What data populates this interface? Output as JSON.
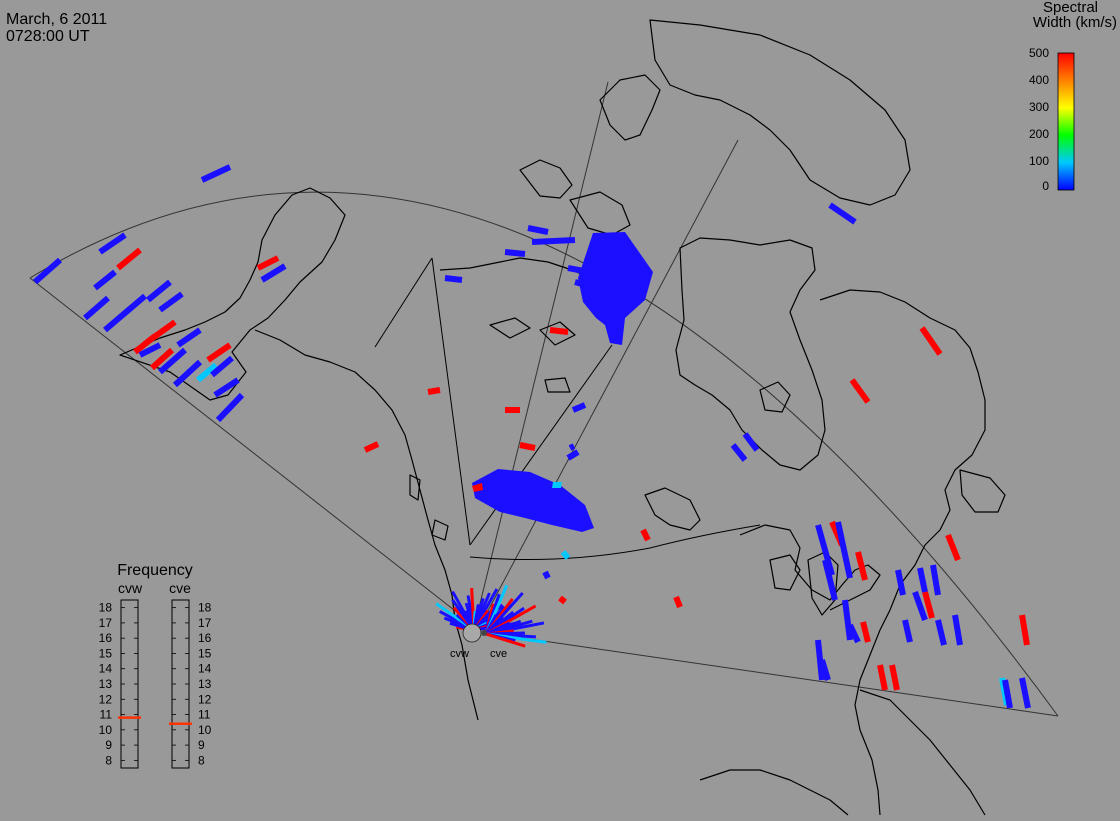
{
  "header": {
    "date": "March, 6 2011",
    "time": "0728:00 UT"
  },
  "scale": {
    "title_line1": "Spectral",
    "title_line2": "Width (km/s)",
    "ticks": [
      "500",
      "400",
      "300",
      "200",
      "100",
      "0"
    ],
    "gradient": [
      "#0000ff",
      "#00c8ff",
      "#00ff00",
      "#ffff00",
      "#ff8000",
      "#ff0000"
    ]
  },
  "radars": {
    "site_labels": [
      "cvw",
      "cve"
    ],
    "frequency": {
      "title": "Frequency",
      "left_label": "cvw",
      "right_label": "cve",
      "ticks": [
        "18",
        "17",
        "16",
        "15",
        "14",
        "13",
        "12",
        "11",
        "10",
        "9",
        "8"
      ],
      "cvw_mhz": 10.8,
      "cve_mhz": 10.4,
      "marker_color": "#ff3300"
    }
  },
  "scatter_colors": {
    "low": "#1a10ff",
    "high": "#ff0000",
    "mid": "#00c8ff",
    "peak": "#ffff00"
  }
}
